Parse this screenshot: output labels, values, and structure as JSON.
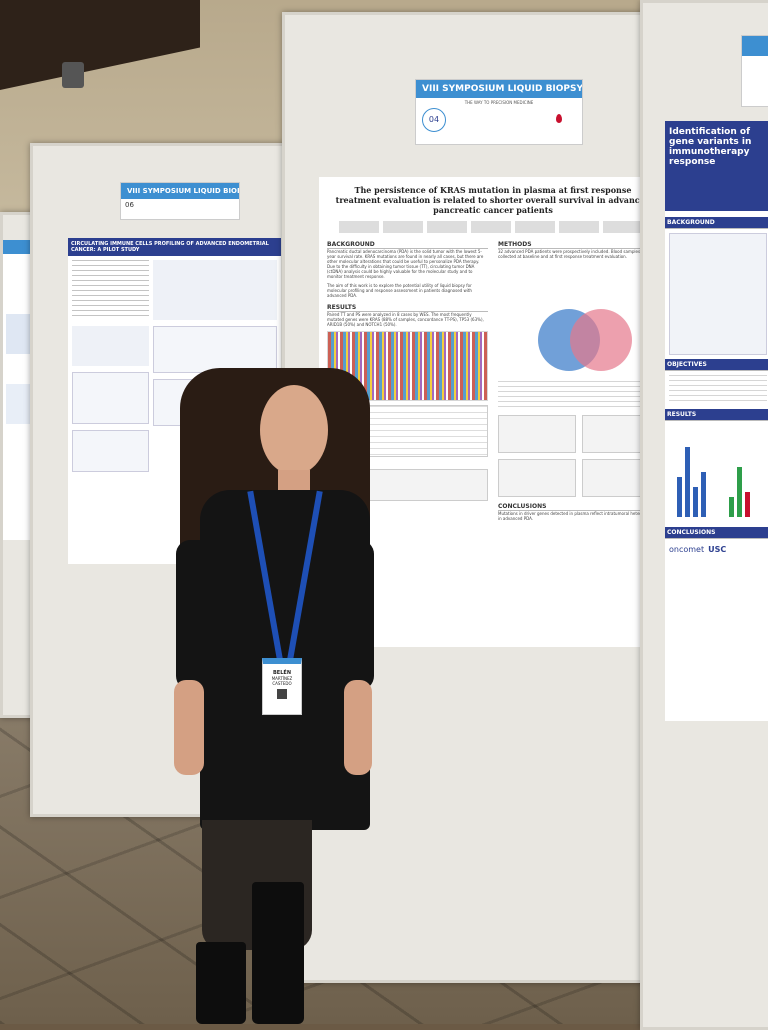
{
  "posters": {
    "left": {
      "banner_title": "VIII SYMPOSIUM LIQUID BIOPSY",
      "number": "06",
      "title": "CIRCULATING IMMUNE CELLS PROFILING OF ADVANCED ENDOMETRIAL CANCER: A PILOT STUDY"
    },
    "center": {
      "banner_title": "VIII SYMPOSIUM LIQUID BIOPSY",
      "banner_year": "2023",
      "banner_subtitle": "THE WAY TO PRECISION MEDICINE",
      "number": "04",
      "title": "The persistence of KRAS mutation in plasma at first response treatment evaluation is related to shorter overall survival in advanced pancreatic cancer patients",
      "sections": {
        "background": "BACKGROUND",
        "methods": "METHODS",
        "results": "RESULTS",
        "conclusions": "CONCLUSIONS"
      },
      "text": {
        "background": "Pancreatic ductal adenocarcinoma (PDA) is the solid tumor with the lowest 5-year survival rate. KRAS mutations are found in nearly all cases, but there are other molecular alterations that could be useful to personalize PDA therapy. Due to the difficulty in obtaining tumor tissue (TT), circulating tumor DNA (ctDNA) analysis could be highly valuable for the molecular study and to monitor treatment response.",
        "aim": "The aim of this work is to explore the potential utility of liquid biopsy for molecular profiling and response assessment in patients diagnosed with advanced PDA.",
        "methods": "32 advanced PDA patients were prospectively included. Blood samples were collected at baseline and at first response treatment evaluation.",
        "results": "Paired TT and PS were analyzed in 8 cases by WES. The most frequently mutated genes were KRAS (88% of samples, concordance TT-PS), TP53 (63%), ARID1B (50%) and NOTCH1 (50%).",
        "conclusions": "Mutations in driver genes detected in plasma reflect intratumoral heterogeneity in advanced PDA."
      }
    },
    "right": {
      "title": "Identification of gene variants in immunotherapy response",
      "sections": {
        "background": "BACKGROUND",
        "objectives": "OBJECTIVES",
        "results": "RESULTS",
        "conclusions": "CONCLUSIONS"
      },
      "logo": "oncomet",
      "logo2": "USC"
    }
  },
  "badge": {
    "first_name": "BELÉN",
    "last_name": "MARTÍNEZ CASTEDO"
  },
  "colors": {
    "banner": "#3d8fd1",
    "poster_header": "#2c3f8f",
    "lanyard": "#1e4fb5",
    "accent_red": "#c8102e"
  }
}
